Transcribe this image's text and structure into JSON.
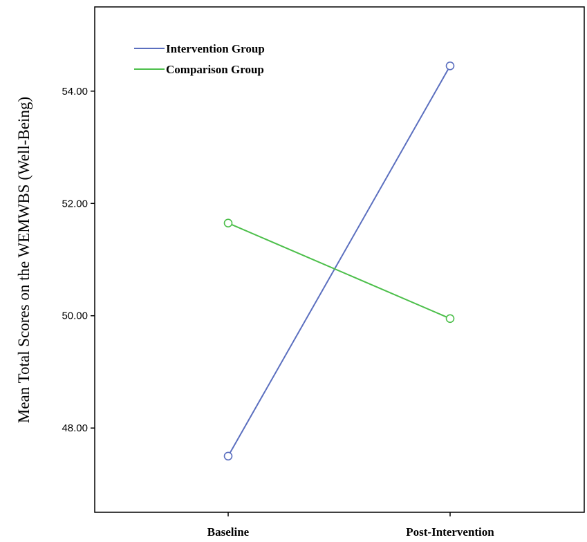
{
  "chart_data": {
    "type": "line",
    "categories": [
      "Baseline",
      "Post-Intervention"
    ],
    "series": [
      {
        "name": "Intervention Group",
        "values": [
          47.5,
          54.45
        ],
        "color": "#5b6fbf"
      },
      {
        "name": "Comparison Group",
        "values": [
          51.65,
          49.95
        ],
        "color": "#4cbf4a"
      }
    ],
    "yticks": [
      "48.00",
      "50.00",
      "52.00",
      "54.00"
    ],
    "ytick_values": [
      48,
      50,
      52,
      54
    ],
    "ylabel": "Mean Total Scores on the WEMWBS (Well-Being)",
    "xlabel": "",
    "ylim": [
      46.5,
      55.5
    ],
    "marker": "open-circle",
    "grid": false,
    "legend_position": "top-left"
  }
}
